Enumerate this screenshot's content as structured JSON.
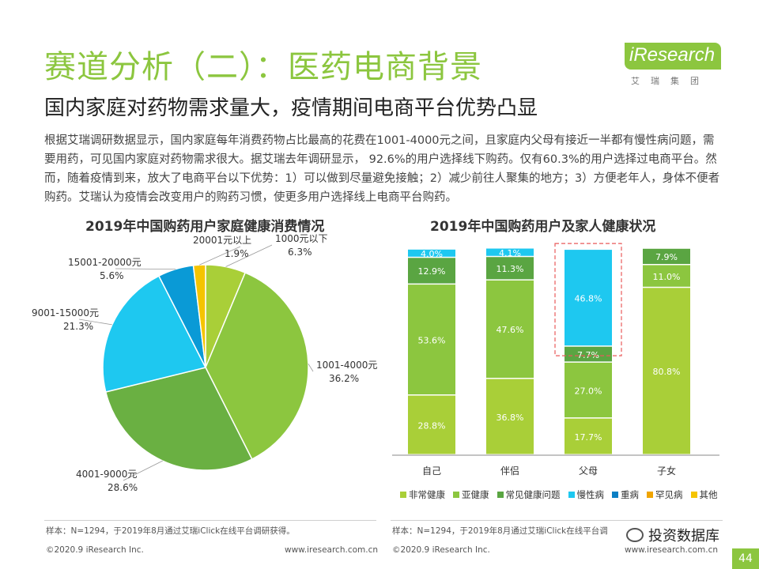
{
  "header": {
    "title": "赛道分析（二）：医药电商背景",
    "subtitle": "国内家庭对药物需求量大，疫情期间电商平台优势凸显",
    "logo": "iResearch",
    "logo_sub": "艾瑞集团"
  },
  "paragraph": "根据艾瑞调研数据显示，国内家庭每年消费药物占比最高的花费在1001-4000元之间，且家庭内父母有接近一半都有慢性病问题，需要用药，可见国内家庭对药物需求很大。据艾瑞去年调研显示， 92.6%的用户选择线下购药。仅有60.3%的用户选择过电商平台。然而，随着疫情到来，放大了电商平台以下优势：1）可以做到尽量避免接触；2）减少前往人聚集的地方；3）方便老年人，身体不便者购药。艾瑞认为疫情会改变用户的购药习惯，使更多用户选择线上电商平台购药。",
  "chart_data": [
    {
      "type": "pie",
      "title": "2019年中国购药用户家庭健康消费情况",
      "slices": [
        {
          "label": "1000元以下",
          "value": 6.3,
          "display": "6.3%",
          "color": "#a9cf38"
        },
        {
          "label": "1001-4000元",
          "value": 36.2,
          "display": "36.2%",
          "color": "#8cc63f"
        },
        {
          "label": "4001-9000元",
          "value": 28.6,
          "display": "28.6%",
          "color": "#6ab042"
        },
        {
          "label": "9001-15000元",
          "value": 21.3,
          "display": "21.3%",
          "color": "#1ec8f0"
        },
        {
          "label": "15001-20000元",
          "value": 5.6,
          "display": "5.6%",
          "color": "#0a9ad6"
        },
        {
          "label": "20001元以上",
          "value": 1.9,
          "display": "1.9%",
          "color": "#f5c400"
        }
      ]
    },
    {
      "type": "bar",
      "stacked": true,
      "title": "2019年中国购药用户及家人健康状况",
      "categories": [
        "自己",
        "伴侣",
        "父母",
        "子女"
      ],
      "highlight_category": "父母",
      "series": [
        {
          "name": "非常健康",
          "color": "#a9cf38",
          "values": [
            28.8,
            36.8,
            17.7,
            80.8
          ]
        },
        {
          "name": "亚健康",
          "color": "#8cc63f",
          "values": [
            53.6,
            47.6,
            27.0,
            11.0
          ]
        },
        {
          "name": "常见健康问题",
          "color": "#5aa542",
          "values": [
            12.9,
            11.3,
            7.7,
            7.9
          ]
        },
        {
          "name": "慢性病",
          "color": "#1ec8f0",
          "values": [
            4.0,
            4.1,
            46.8,
            0
          ]
        },
        {
          "name": "重病",
          "color": "#0a7fc4",
          "values": [
            0,
            0,
            0,
            0
          ]
        },
        {
          "name": "罕见病",
          "color": "#f0a400",
          "values": [
            0,
            0,
            0,
            0
          ]
        },
        {
          "name": "其他",
          "color": "#f5c400",
          "values": [
            0,
            0,
            0,
            0
          ]
        }
      ],
      "ylim": [
        0,
        100
      ]
    }
  ],
  "footer": {
    "left_note": "样本：N=1294，于2019年8月通过艾瑞iClick在线平台调研获得。",
    "left_copyright": "©2020.9 iResearch Inc.",
    "left_url": "www.iresearch.com.cn",
    "right_note": "样本：N=1294，于2019年8月通过艾瑞iClick在线平台调",
    "right_copyright": "©2020.9 iResearch Inc.",
    "right_url": "www.iresearch.com.cn",
    "watermark": "投资数据库",
    "page": "44"
  }
}
